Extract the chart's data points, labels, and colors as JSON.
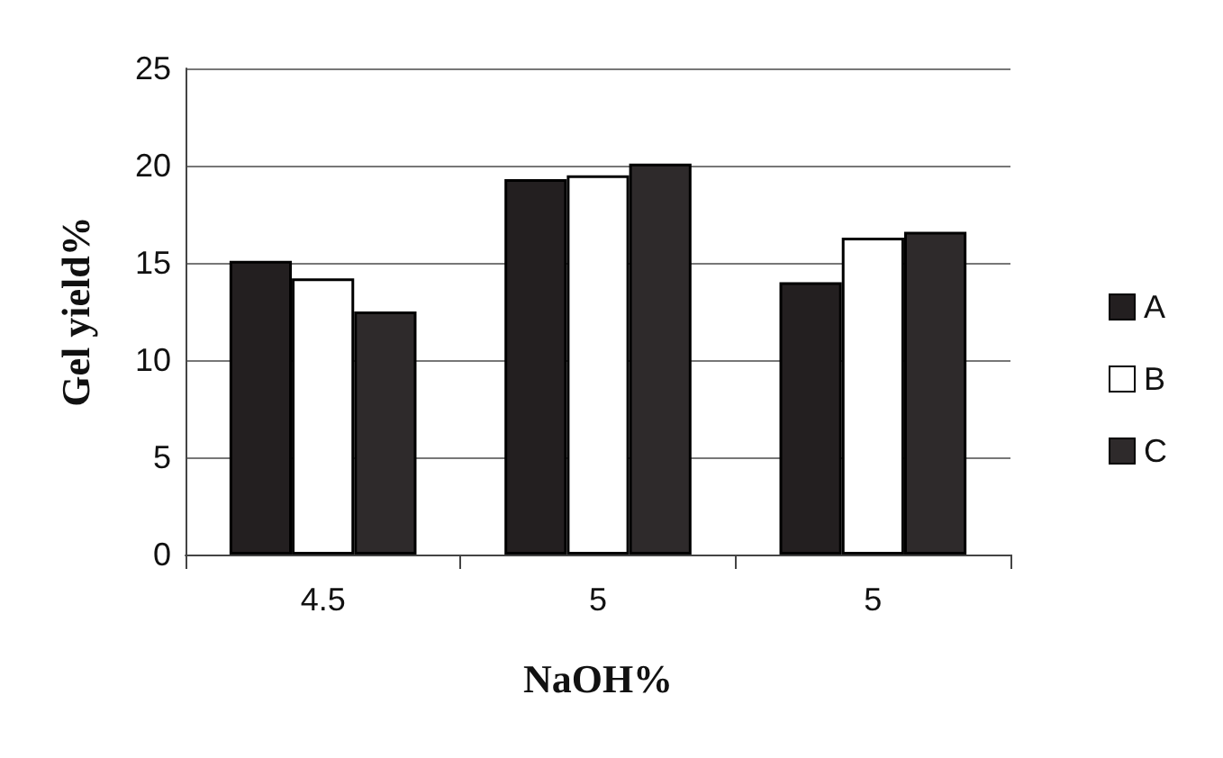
{
  "chart_data": {
    "type": "bar",
    "xlabel": "NaOH%",
    "ylabel": "Gel yield%",
    "categories": [
      "4.5",
      "5",
      "5"
    ],
    "series": [
      {
        "name": "A",
        "color": "#231f20",
        "values": [
          15.1,
          19.3,
          14.0
        ]
      },
      {
        "name": "B",
        "color": "#ffffff",
        "values": [
          14.2,
          19.5,
          16.3
        ]
      },
      {
        "name": "C",
        "color": "#2e2a2b",
        "values": [
          12.5,
          20.1,
          16.6
        ]
      }
    ],
    "ylim": [
      0,
      25
    ],
    "yticks": [
      0,
      5,
      10,
      15,
      20,
      25
    ],
    "grid": "y",
    "legend": "right"
  }
}
